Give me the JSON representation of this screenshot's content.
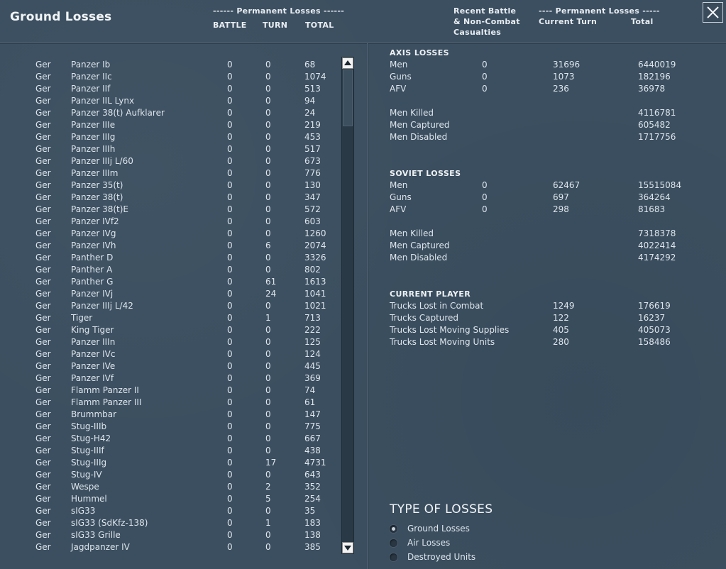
{
  "title": "Ground Losses",
  "header": {
    "perm_losses_left": "------ Permanent Losses ------",
    "col_battle": "BATTLE",
    "col_turn": "TURN",
    "col_total": "TOTAL",
    "recent_line1": "Recent Battle",
    "recent_line2": "& Non-Combat",
    "recent_line3": "Casualties",
    "perm_losses_right": "---- Permanent Losses -----",
    "col_current_turn": "Current Turn",
    "col_total_right": "Total"
  },
  "units": [
    {
      "nation": "Ger",
      "name": "Panzer Ib",
      "battle": "0",
      "turn": "0",
      "total": "68"
    },
    {
      "nation": "Ger",
      "name": "Panzer IIc",
      "battle": "0",
      "turn": "0",
      "total": "1074"
    },
    {
      "nation": "Ger",
      "name": "Panzer IIf",
      "battle": "0",
      "turn": "0",
      "total": "513"
    },
    {
      "nation": "Ger",
      "name": "Panzer IIL Lynx",
      "battle": "0",
      "turn": "0",
      "total": "94"
    },
    {
      "nation": "Ger",
      "name": "Panzer 38(t) Aufklarer",
      "battle": "0",
      "turn": "0",
      "total": "24"
    },
    {
      "nation": "Ger",
      "name": "Panzer IIIe",
      "battle": "0",
      "turn": "0",
      "total": "219"
    },
    {
      "nation": "Ger",
      "name": "Panzer IIIg",
      "battle": "0",
      "turn": "0",
      "total": "453"
    },
    {
      "nation": "Ger",
      "name": "Panzer IIIh",
      "battle": "0",
      "turn": "0",
      "total": "517"
    },
    {
      "nation": "Ger",
      "name": "Panzer IIIj L/60",
      "battle": "0",
      "turn": "0",
      "total": "673"
    },
    {
      "nation": "Ger",
      "name": "Panzer IIIm",
      "battle": "0",
      "turn": "0",
      "total": "776"
    },
    {
      "nation": "Ger",
      "name": "Panzer 35(t)",
      "battle": "0",
      "turn": "0",
      "total": "130"
    },
    {
      "nation": "Ger",
      "name": "Panzer 38(t)",
      "battle": "0",
      "turn": "0",
      "total": "347"
    },
    {
      "nation": "Ger",
      "name": "Panzer 38(t)E",
      "battle": "0",
      "turn": "0",
      "total": "572"
    },
    {
      "nation": "Ger",
      "name": "Panzer IVf2",
      "battle": "0",
      "turn": "0",
      "total": "603"
    },
    {
      "nation": "Ger",
      "name": "Panzer IVg",
      "battle": "0",
      "turn": "0",
      "total": "1260"
    },
    {
      "nation": "Ger",
      "name": "Panzer IVh",
      "battle": "0",
      "turn": "6",
      "total": "2074"
    },
    {
      "nation": "Ger",
      "name": "Panther D",
      "battle": "0",
      "turn": "0",
      "total": "3326"
    },
    {
      "nation": "Ger",
      "name": "Panther A",
      "battle": "0",
      "turn": "0",
      "total": "802"
    },
    {
      "nation": "Ger",
      "name": "Panther G",
      "battle": "0",
      "turn": "61",
      "total": "1613"
    },
    {
      "nation": "Ger",
      "name": "Panzer IVj",
      "battle": "0",
      "turn": "24",
      "total": "1041"
    },
    {
      "nation": "Ger",
      "name": "Panzer IIIj L/42",
      "battle": "0",
      "turn": "0",
      "total": "1021"
    },
    {
      "nation": "Ger",
      "name": "Tiger",
      "battle": "0",
      "turn": "1",
      "total": "713"
    },
    {
      "nation": "Ger",
      "name": "King Tiger",
      "battle": "0",
      "turn": "0",
      "total": "222"
    },
    {
      "nation": "Ger",
      "name": "Panzer IIIn",
      "battle": "0",
      "turn": "0",
      "total": "125"
    },
    {
      "nation": "Ger",
      "name": "Panzer IVc",
      "battle": "0",
      "turn": "0",
      "total": "124"
    },
    {
      "nation": "Ger",
      "name": "Panzer IVe",
      "battle": "0",
      "turn": "0",
      "total": "445"
    },
    {
      "nation": "Ger",
      "name": "Panzer IVf",
      "battle": "0",
      "turn": "0",
      "total": "369"
    },
    {
      "nation": "Ger",
      "name": "Flamm Panzer II",
      "battle": "0",
      "turn": "0",
      "total": "74"
    },
    {
      "nation": "Ger",
      "name": "Flamm Panzer III",
      "battle": "0",
      "turn": "0",
      "total": "61"
    },
    {
      "nation": "Ger",
      "name": "Brummbar",
      "battle": "0",
      "turn": "0",
      "total": "147"
    },
    {
      "nation": "Ger",
      "name": "Stug-IIIb",
      "battle": "0",
      "turn": "0",
      "total": "775"
    },
    {
      "nation": "Ger",
      "name": "Stug-H42",
      "battle": "0",
      "turn": "0",
      "total": "667"
    },
    {
      "nation": "Ger",
      "name": "Stug-IIIf",
      "battle": "0",
      "turn": "0",
      "total": "438"
    },
    {
      "nation": "Ger",
      "name": "Stug-IIIg",
      "battle": "0",
      "turn": "17",
      "total": "4731"
    },
    {
      "nation": "Ger",
      "name": "Stug-IV",
      "battle": "0",
      "turn": "0",
      "total": "643"
    },
    {
      "nation": "Ger",
      "name": "Wespe",
      "battle": "0",
      "turn": "2",
      "total": "352"
    },
    {
      "nation": "Ger",
      "name": "Hummel",
      "battle": "0",
      "turn": "5",
      "total": "254"
    },
    {
      "nation": "Ger",
      "name": "sIG33",
      "battle": "0",
      "turn": "0",
      "total": "35"
    },
    {
      "nation": "Ger",
      "name": "sIG33 (SdKfz-138)",
      "battle": "0",
      "turn": "1",
      "total": "183"
    },
    {
      "nation": "Ger",
      "name": "sIG33 Grille",
      "battle": "0",
      "turn": "0",
      "total": "138"
    },
    {
      "nation": "Ger",
      "name": "Jagdpanzer IV",
      "battle": "0",
      "turn": "0",
      "total": "385"
    }
  ],
  "axis": {
    "title": "AXIS LOSSES",
    "rows": [
      {
        "label": "Men",
        "battle": "0",
        "current": "31696",
        "total": "6440019"
      },
      {
        "label": "Guns",
        "battle": "0",
        "current": "1073",
        "total": "182196"
      },
      {
        "label": "AFV",
        "battle": "0",
        "current": "236",
        "total": "36978"
      }
    ],
    "detail": [
      {
        "label": "Men Killed",
        "total": "4116781"
      },
      {
        "label": "Men Captured",
        "total": "605482"
      },
      {
        "label": "Men Disabled",
        "total": "1717756"
      }
    ]
  },
  "soviet": {
    "title": "SOVIET LOSSES",
    "rows": [
      {
        "label": "Men",
        "battle": "0",
        "current": "62467",
        "total": "15515084"
      },
      {
        "label": "Guns",
        "battle": "0",
        "current": "697",
        "total": "364264"
      },
      {
        "label": "AFV",
        "battle": "0",
        "current": "298",
        "total": "81683"
      }
    ],
    "detail": [
      {
        "label": "Men Killed",
        "total": "7318378"
      },
      {
        "label": "Men Captured",
        "total": "4022414"
      },
      {
        "label": "Men Disabled",
        "total": "4174292"
      }
    ]
  },
  "player": {
    "title": "CURRENT PLAYER",
    "rows": [
      {
        "label": "Trucks Lost in Combat",
        "current": "1249",
        "total": "176619"
      },
      {
        "label": "Trucks Captured",
        "current": "122",
        "total": "16237"
      },
      {
        "label": "Trucks Lost Moving Supplies",
        "current": "405",
        "total": "405073"
      },
      {
        "label": "Trucks Lost Moving Units",
        "current": "280",
        "total": "158486"
      }
    ]
  },
  "type_of_losses": {
    "title": "TYPE OF LOSSES",
    "options": [
      {
        "label": "Ground Losses",
        "selected": true
      },
      {
        "label": "Air Losses",
        "selected": false
      },
      {
        "label": "Destroyed Units",
        "selected": false
      }
    ]
  },
  "icons": {
    "close": "close-icon",
    "scroll_up": "scroll-up-arrow-icon",
    "scroll_down": "scroll-down-arrow-icon"
  },
  "colors": {
    "background": "#3b4f60",
    "text": "#dfe5eb",
    "scroll_track": "#2a3946"
  }
}
